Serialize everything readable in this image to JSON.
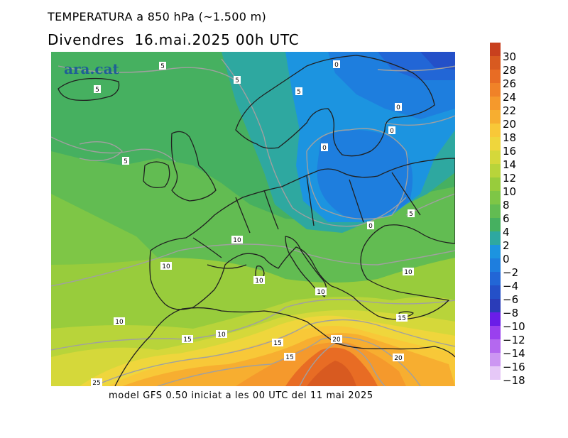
{
  "header": {
    "title": "TEMPERATURA a 850 hPa (~1.500 m)",
    "day": "Divendres",
    "date": "16.mai.2025 00h UTC"
  },
  "logo": "ara.cat",
  "footer": "model GFS 0.50 iniciat a les 00 UTC del 11 mai 2025",
  "legend": {
    "labels": [
      "30",
      "28",
      "26",
      "24",
      "22",
      "20",
      "18",
      "16",
      "14",
      "12",
      "10",
      "8",
      "6",
      "4",
      "2",
      "0",
      "−2",
      "−4",
      "−6",
      "−8",
      "−10",
      "−12",
      "−14",
      "−16",
      "−18"
    ],
    "colors": [
      "#c8401e",
      "#d85a20",
      "#e86c24",
      "#f08228",
      "#f5992c",
      "#f7ae30",
      "#f8c838",
      "#efd63c",
      "#d5d83a",
      "#b8d43a",
      "#98cc3c",
      "#7ec646",
      "#62bc52",
      "#46b060",
      "#2ea8a0",
      "#1c94e0",
      "#1e7ede",
      "#2266d6",
      "#2450c8",
      "#2a3cb8",
      "#6a1de8",
      "#9a40ee",
      "#b468ef",
      "#cc96f2",
      "#e6c8f7"
    ]
  },
  "isotherm_labels": [
    "5",
    "5",
    "5",
    "5",
    "5",
    "0",
    "0",
    "0",
    "0",
    "0",
    "5",
    "10",
    "10",
    "10",
    "10",
    "10",
    "10",
    "10",
    "15",
    "15",
    "15",
    "15",
    "20",
    "20",
    "25"
  ]
}
